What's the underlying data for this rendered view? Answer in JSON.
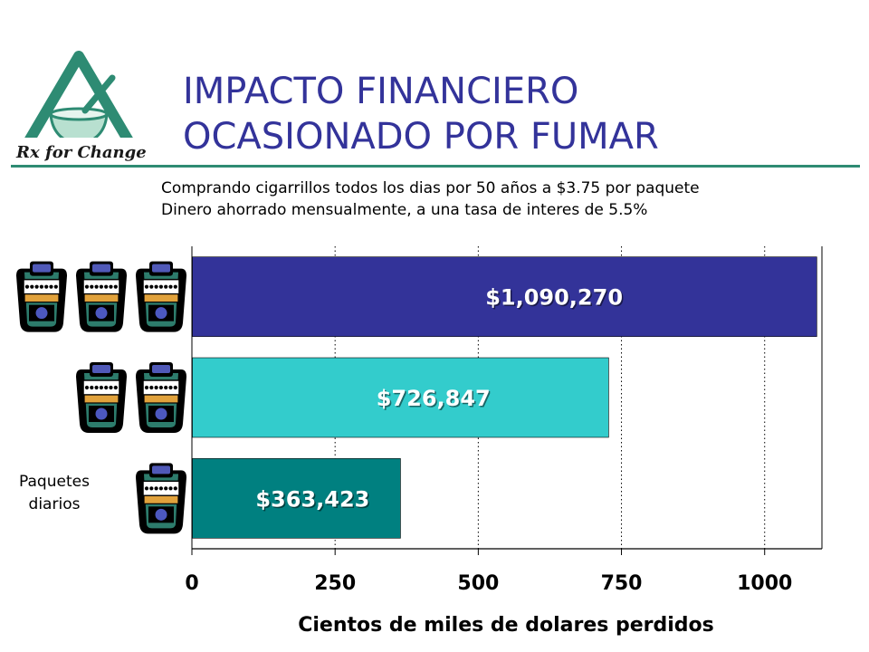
{
  "title": {
    "line1": "IMPACTO FINANCIERO",
    "line2": "OCASIONADO POR FUMAR"
  },
  "logo": {
    "text": "Rx for Change",
    "icon": "mortar-and-pestle-triangle-logo"
  },
  "subtitle": {
    "line1": "Comprando cigarrillos todos los dias por 50 años a $3.75 por paquete",
    "line2": "Dinero ahorrado mensualmente, a una tasa de interes de 5.5%"
  },
  "packs_label": {
    "line1": "Paquetes",
    "line2": "diarios"
  },
  "icons": {
    "pack": "cigarette-pack-icon"
  },
  "colors": {
    "title": "#33339a",
    "accent_rule": "#2e8b73",
    "bar_3_packs": "#333399",
    "bar_2_packs": "#33cccc",
    "bar_1_pack": "#008080"
  },
  "chart_data": {
    "type": "bar",
    "orientation": "horizontal",
    "categories": [
      "3",
      "2",
      "1"
    ],
    "packs": [
      3,
      2,
      1
    ],
    "values": [
      1090.27,
      726.847,
      363.423
    ],
    "value_labels": [
      "$1,090,270",
      "$726,847",
      "$363,423"
    ],
    "bar_colors": [
      "#333399",
      "#33cccc",
      "#008080"
    ],
    "xlabel": "Cientos de miles de dolares perdidos",
    "xlim": [
      0,
      1100
    ],
    "xticks": [
      0,
      250,
      500,
      750,
      1000
    ],
    "xtick_labels": [
      "0",
      "250",
      "500",
      "750",
      "1000"
    ],
    "grid": "vertical dotted"
  }
}
